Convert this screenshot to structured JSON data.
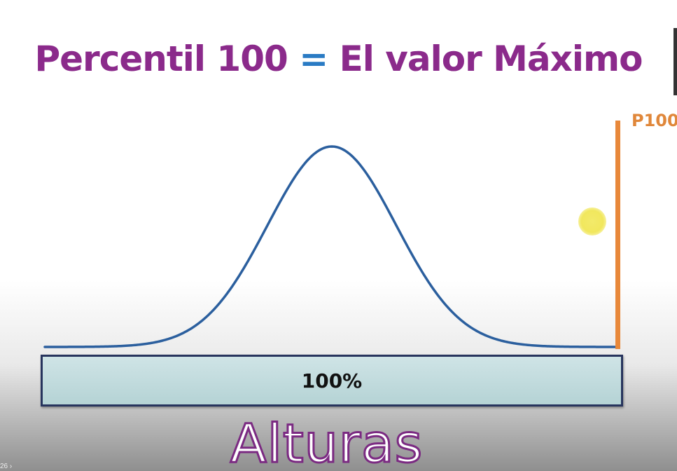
{
  "slide": {
    "title_left": "Percentil 100",
    "title_eq": "=",
    "title_right": "El valor Máximo",
    "marker_label": "P100",
    "bar_label": "100%",
    "axis_label": "Alturas",
    "player_hint": "26 ›"
  },
  "colors": {
    "title": "#8b2a8b",
    "equals": "#2a7bc4",
    "marker": "#e8883a",
    "curve": "#2b5f9e",
    "bar_fill": "#c3dcde",
    "bar_border": "#27345d",
    "cursor_highlight": "#f1e75d"
  }
}
